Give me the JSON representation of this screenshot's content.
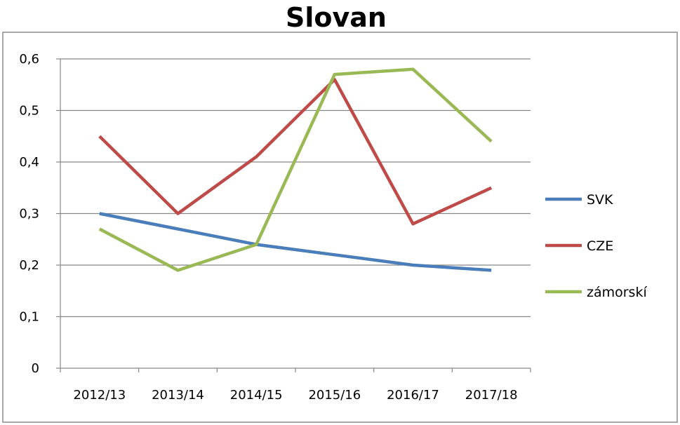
{
  "chart_data": {
    "type": "line",
    "title": "Slovan",
    "xlabel": "",
    "ylabel": "",
    "categories": [
      "2012/13",
      "2013/14",
      "2014/15",
      "2015/16",
      "2016/17",
      "2017/18"
    ],
    "ylim": [
      0,
      0.6
    ],
    "yticks": [
      0,
      0.1,
      0.2,
      0.3,
      0.4,
      0.5,
      0.6
    ],
    "ytick_labels": [
      "0",
      "0,1",
      "0,2",
      "0,3",
      "0,4",
      "0,5",
      "0,6"
    ],
    "grid": true,
    "legend_position": "right",
    "series": [
      {
        "name": "SVK",
        "color": "#4a7ebb",
        "values": [
          0.3,
          0.27,
          0.24,
          0.22,
          0.2,
          0.19
        ]
      },
      {
        "name": "CZE",
        "color": "#be4b48",
        "values": [
          0.45,
          0.3,
          0.41,
          0.56,
          0.28,
          0.35
        ]
      },
      {
        "name": "zámorskí",
        "color": "#98b954",
        "values": [
          0.27,
          0.19,
          0.24,
          0.57,
          0.58,
          0.44
        ]
      }
    ]
  }
}
